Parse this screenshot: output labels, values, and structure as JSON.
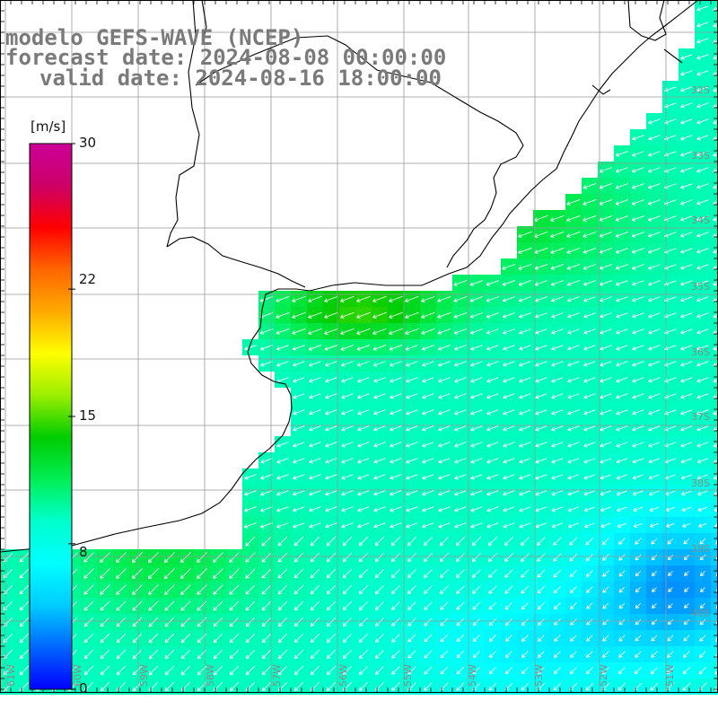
{
  "title": {
    "line1": "modelo GEFS-WAVE (NCEP)",
    "line2": "forecast date: 2024-08-08 00:00:00",
    "line3": "valid date: 2024-08-16 18:00:00"
  },
  "colorbar": {
    "unit": "[m/s]",
    "min": 0,
    "max": 30,
    "ticks": [
      "30",
      "22",
      "15",
      "8",
      "0"
    ],
    "tick_values": [
      30,
      22,
      15,
      8,
      0
    ],
    "colors": [
      "#0000ff",
      "#0066ff",
      "#00ccff",
      "#00ffff",
      "#00ffcc",
      "#00ee55",
      "#00cc00",
      "#99ee00",
      "#ffff00",
      "#ffaa00",
      "#ff6600",
      "#ff0000",
      "#cc0066",
      "#cc0099"
    ]
  },
  "map": {
    "variable": "10 m wind speed and direction",
    "lat_labels": [
      "32S",
      "33S",
      "34S",
      "35S",
      "36S",
      "37S",
      "38S",
      "39S",
      "40S"
    ],
    "lon_labels": [
      "61W",
      "60W",
      "59W",
      "58W",
      "57W",
      "56W",
      "55W",
      "54W",
      "53W",
      "52W",
      "51W"
    ],
    "land_color": "#ffffff",
    "grid_color": "#999999",
    "coast_color": "#000000"
  }
}
